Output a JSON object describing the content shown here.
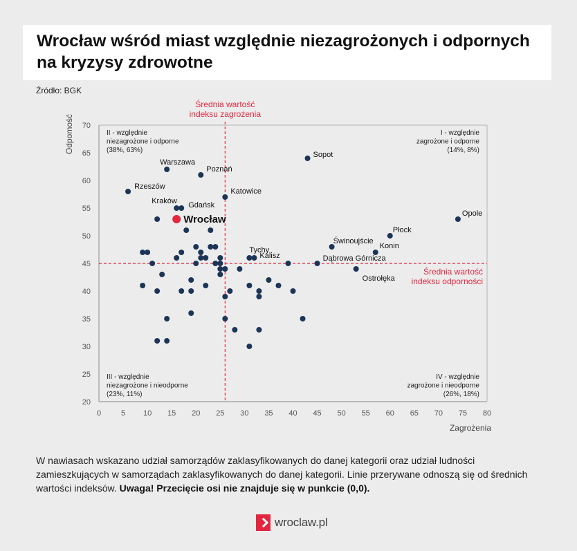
{
  "header": {
    "title": "Wrocław wśród miast względnie niezagrożonych i odpornych\nna kryzysy zdrowotne",
    "source": "Źródło: BGK"
  },
  "chart_data": {
    "type": "scatter",
    "title": "Wrocław wśród miast względnie niezagrożonych i odpornych na kryzysy zdrowotne",
    "xlabel": "Zagrożenia",
    "ylabel": "Odpomość",
    "xlim": [
      0,
      80
    ],
    "ylim": [
      20,
      70
    ],
    "xticks": [
      0,
      5,
      10,
      15,
      20,
      25,
      30,
      35,
      40,
      45,
      50,
      55,
      60,
      65,
      70,
      75,
      80
    ],
    "yticks": [
      20,
      25,
      30,
      35,
      40,
      45,
      50,
      55,
      60,
      65,
      70
    ],
    "grid": false,
    "colors": {
      "point": "#1c3557",
      "highlight": "#e3263f",
      "reference": "#e3263f"
    },
    "reference_lines": {
      "vertical": {
        "x": 26,
        "label_lines": [
          "Średnia wartość",
          "indeksu zagrożenia"
        ]
      },
      "horizontal": {
        "y": 45,
        "label_lines": [
          "Średnia wartość",
          "indeksu odporności"
        ]
      }
    },
    "quadrants": [
      {
        "id": "II",
        "align": "left",
        "position": "top-left",
        "lines": [
          "II - względnie",
          "niezagrożone i odporne",
          "(38%, 63%)"
        ]
      },
      {
        "id": "I",
        "align": "right",
        "position": "top-right",
        "lines": [
          "I - względnie",
          "zagrożone i odporne",
          "(14%, 8%)"
        ]
      },
      {
        "id": "III",
        "align": "left",
        "position": "bottom-left",
        "lines": [
          "III - względnie",
          "niezagrożone i nieodporne",
          "(23%, 11%)"
        ]
      },
      {
        "id": "IV",
        "align": "right",
        "position": "bottom-right",
        "lines": [
          "IV - względnie",
          "zagrożone i nieodporne",
          "(26%, 18%)"
        ]
      }
    ],
    "highlight": {
      "label": "Wrocław",
      "x": 16,
      "y": 53
    },
    "labeled_points": [
      {
        "label": "Sopot",
        "x": 43,
        "y": 64
      },
      {
        "label": "Warszawa",
        "x": 14,
        "y": 62
      },
      {
        "label": "Poznań",
        "x": 21,
        "y": 61
      },
      {
        "label": "Rzeszów",
        "x": 6,
        "y": 58
      },
      {
        "label": "Katowice",
        "x": 26,
        "y": 57
      },
      {
        "label": "Kraków",
        "x": 16,
        "y": 55
      },
      {
        "label": "Gdańsk",
        "x": 17,
        "y": 55
      },
      {
        "label": "Opole",
        "x": 74,
        "y": 53
      },
      {
        "label": "Płock",
        "x": 60,
        "y": 50
      },
      {
        "label": "Świnoujście",
        "x": 48,
        "y": 48
      },
      {
        "label": "Konin",
        "x": 57,
        "y": 47
      },
      {
        "label": "Tychy",
        "x": 31,
        "y": 46
      },
      {
        "label": "Kalisz",
        "x": 32,
        "y": 46
      },
      {
        "label": "Dąbrowa Górnicza",
        "x": 45,
        "y": 45
      },
      {
        "label": "Ostrołęka",
        "x": 53,
        "y": 44
      }
    ],
    "points": [
      [
        12,
        53
      ],
      [
        18,
        51
      ],
      [
        23,
        51
      ],
      [
        20,
        48
      ],
      [
        23,
        48
      ],
      [
        24,
        48
      ],
      [
        9,
        47
      ],
      [
        10,
        47
      ],
      [
        17,
        47
      ],
      [
        21,
        47
      ],
      [
        16,
        46
      ],
      [
        21,
        46
      ],
      [
        22,
        46
      ],
      [
        25,
        46
      ],
      [
        11,
        45
      ],
      [
        20,
        45
      ],
      [
        24,
        45
      ],
      [
        25,
        45
      ],
      [
        39,
        45
      ],
      [
        25,
        44
      ],
      [
        26,
        44
      ],
      [
        29,
        44
      ],
      [
        13,
        43
      ],
      [
        25,
        43
      ],
      [
        19,
        42
      ],
      [
        35,
        42
      ],
      [
        9,
        41
      ],
      [
        22,
        41
      ],
      [
        31,
        41
      ],
      [
        37,
        41
      ],
      [
        12,
        40
      ],
      [
        17,
        40
      ],
      [
        19,
        40
      ],
      [
        27,
        40
      ],
      [
        33,
        40
      ],
      [
        40,
        40
      ],
      [
        26,
        39
      ],
      [
        33,
        39
      ],
      [
        19,
        36
      ],
      [
        14,
        35
      ],
      [
        26,
        35
      ],
      [
        42,
        35
      ],
      [
        28,
        33
      ],
      [
        33,
        33
      ],
      [
        12,
        31
      ],
      [
        14,
        31
      ],
      [
        31,
        30
      ]
    ]
  },
  "footer": {
    "note_text": "W nawiasach wskazano udział samorządów zaklasyfikowanych do danej kategorii oraz udział ludności zamieszkujących w samorządach zaklasyfikowanych do danej kategorii. Linie przerywane odnoszą się od średnich wartości indeksów. ",
    "note_bold": "Uwaga! Przecięcie osi nie znajduje się w punkcie (0,0).",
    "brand": "wroclaw.pl"
  }
}
